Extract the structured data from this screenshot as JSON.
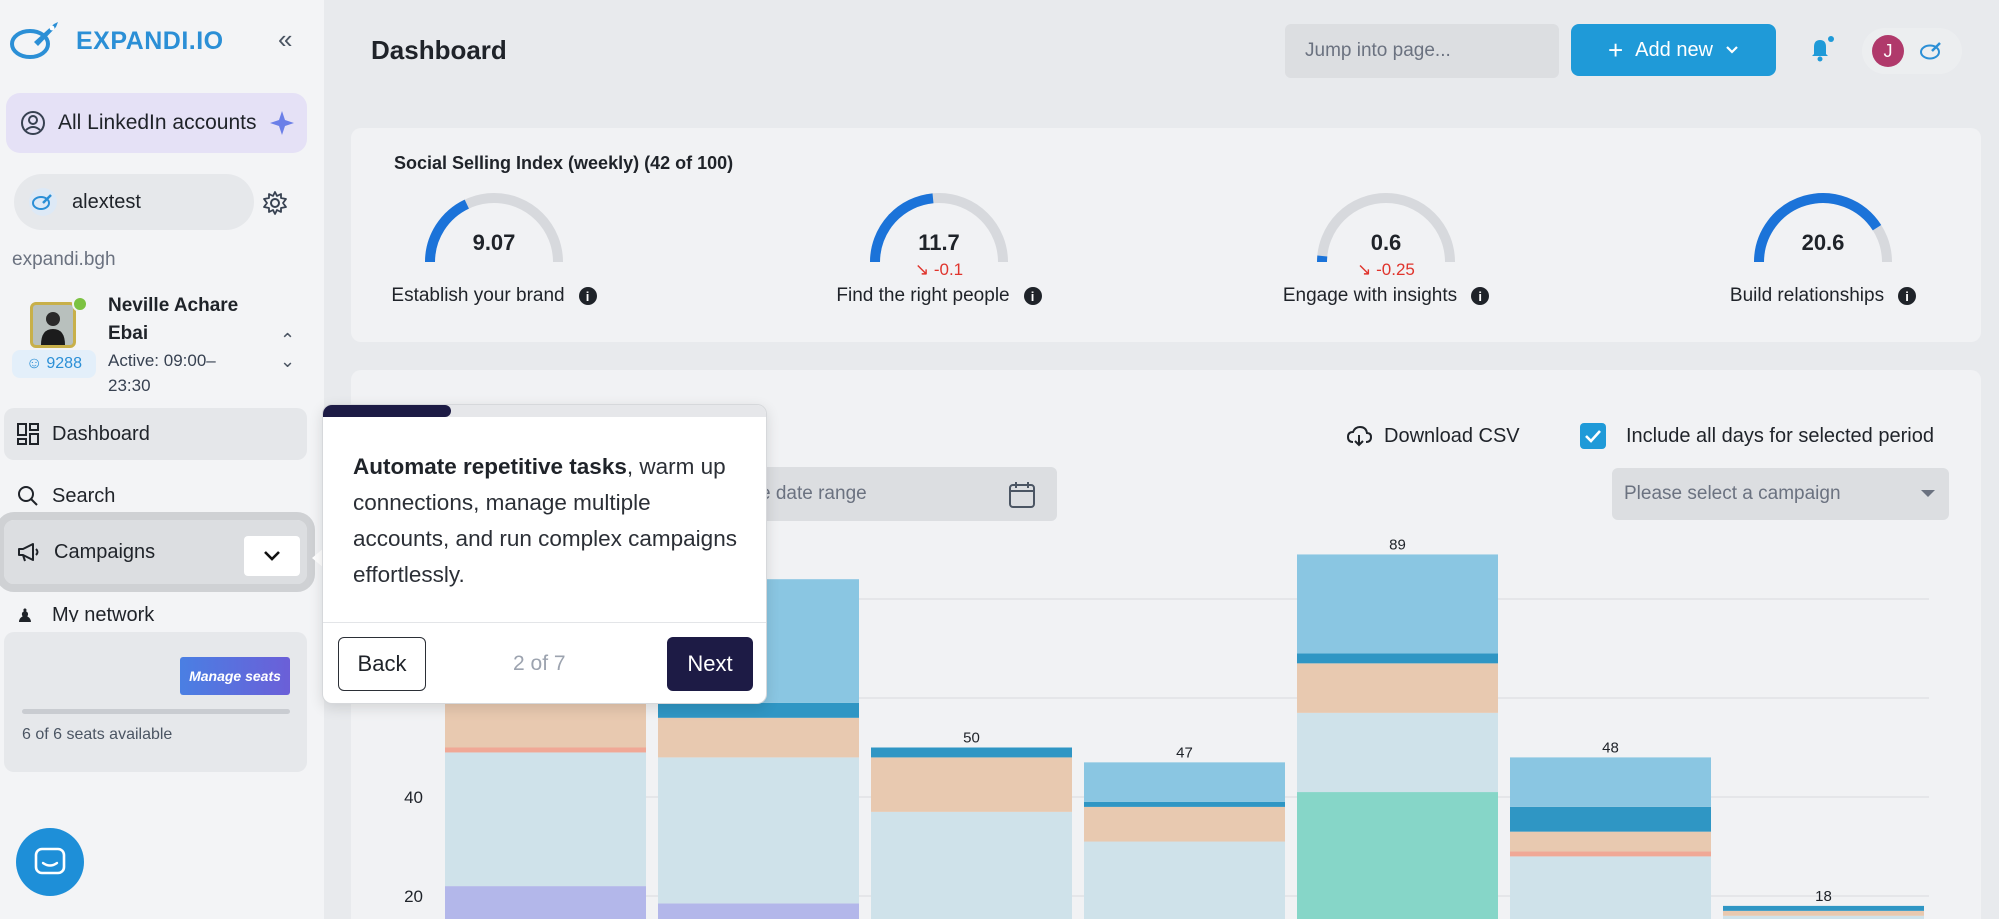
{
  "sidebar": {
    "logo": "EXPANDI.IO",
    "all_accounts": "All LinkedIn accounts",
    "account_name": "alextest",
    "domain": "expandi.bgh",
    "profile": {
      "name": "Neville Achare Ebai",
      "active": "Active: 09:00–23:30",
      "connections": "9288"
    },
    "nav": {
      "dashboard": "Dashboard",
      "search": "Search",
      "campaigns": "Campaigns",
      "my_network": "My network"
    },
    "seats": {
      "manage_label": "Manage seats",
      "available": "6 of 6 seats available"
    }
  },
  "header": {
    "title": "Dashboard",
    "jump_placeholder": "Jump into page...",
    "add_new": "Add new",
    "user_initial": "J"
  },
  "ssi": {
    "title": "Social Selling Index (weekly) (42 of 100)",
    "gauges": [
      {
        "value": "9.07",
        "delta": "",
        "label": "Establish your brand",
        "fraction": 0.36
      },
      {
        "value": "11.7",
        "delta": "-0.1",
        "label": "Find the right people",
        "fraction": 0.47
      },
      {
        "value": "0.6",
        "delta": "-0.25",
        "label": "Engage with insights",
        "fraction": 0.03
      },
      {
        "value": "20.6",
        "delta": "",
        "label": "Build relationships",
        "fraction": 0.82
      }
    ]
  },
  "toolbar": {
    "download_csv": "Download CSV",
    "include_days": "Include all days for selected period",
    "date_range_placeholder": "e date range",
    "campaign_placeholder": "Please select a campaign"
  },
  "tour": {
    "bold": "Automate repetitive tasks",
    "rest": ", warm up connections, manage multiple accounts, and run complex campaigns effortlessly.",
    "back": "Back",
    "step": "2 of 7",
    "next": "Next",
    "progress": 0.29
  },
  "colors": {
    "accent": "#1f9ad8",
    "navy": "#1d1b45",
    "seg_light": "#cfe2ea",
    "seg_peach": "#e8c9b0",
    "seg_sky": "#8ac6e2",
    "seg_dark": "#2f96c4",
    "seg_teal": "#86d6c8",
    "seg_lavender": "#b3b7ea",
    "seg_salmon": "#f0a896"
  },
  "chart_data": {
    "type": "bar",
    "stacked": true,
    "y_ticks": [
      20,
      40
    ],
    "ylim": [
      16,
      95
    ],
    "bar_totals": [
      "",
      "",
      "50",
      "47",
      "89",
      "48",
      "18"
    ],
    "bars": [
      [
        {
          "c": "seg_lavender",
          "v": 22
        },
        {
          "c": "seg_light",
          "v": 49
        },
        {
          "c": "seg_salmon",
          "v": 50
        },
        {
          "c": "seg_peach",
          "v": 60
        },
        {
          "c": "seg_sky",
          "v": 95
        }
      ],
      [
        {
          "c": "seg_lavender",
          "v": 18.5
        },
        {
          "c": "seg_light",
          "v": 48
        },
        {
          "c": "seg_peach",
          "v": 56
        },
        {
          "c": "seg_dark",
          "v": 59
        },
        {
          "c": "seg_sky",
          "v": 84
        }
      ],
      [
        {
          "c": "seg_light",
          "v": 37
        },
        {
          "c": "seg_peach",
          "v": 48
        },
        {
          "c": "seg_dark",
          "v": 50
        }
      ],
      [
        {
          "c": "seg_light",
          "v": 31
        },
        {
          "c": "seg_peach",
          "v": 38
        },
        {
          "c": "seg_dark",
          "v": 39
        },
        {
          "c": "seg_sky",
          "v": 47
        }
      ],
      [
        {
          "c": "seg_teal",
          "v": 41
        },
        {
          "c": "seg_light",
          "v": 57
        },
        {
          "c": "seg_peach",
          "v": 67
        },
        {
          "c": "seg_dark",
          "v": 69
        },
        {
          "c": "seg_sky",
          "v": 89
        }
      ],
      [
        {
          "c": "seg_light",
          "v": 28
        },
        {
          "c": "seg_salmon",
          "v": 29
        },
        {
          "c": "seg_peach",
          "v": 33
        },
        {
          "c": "seg_dark",
          "v": 38
        },
        {
          "c": "seg_sky",
          "v": 48
        }
      ],
      [
        {
          "c": "seg_light",
          "v": 16
        },
        {
          "c": "seg_peach",
          "v": 17
        },
        {
          "c": "seg_dark",
          "v": 18
        }
      ]
    ]
  }
}
